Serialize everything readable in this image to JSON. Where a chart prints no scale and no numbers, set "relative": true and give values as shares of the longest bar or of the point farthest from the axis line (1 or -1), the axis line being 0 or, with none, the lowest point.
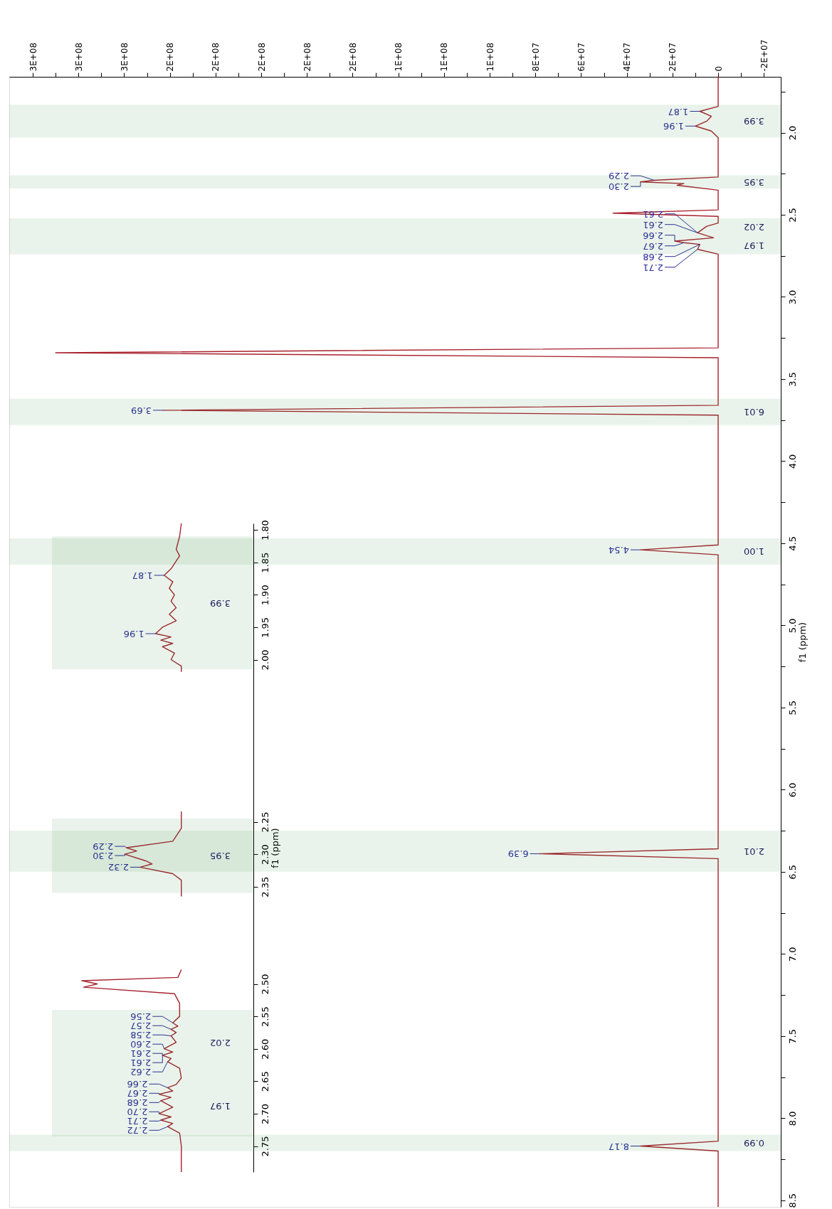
{
  "chart_data": [
    {
      "type": "line",
      "orientation": "horizontal",
      "ylabel": "f1 (ppm)",
      "ylim": [
        8.54,
        1.66
      ],
      "xlim": [
        310300000,
        -27400000
      ],
      "yticks": [
        {
          "value": 1.75,
          "label": null
        },
        {
          "value": 2.0,
          "label": "2.0"
        },
        {
          "value": 2.25,
          "label": null
        },
        {
          "value": 2.5,
          "label": "2.5"
        },
        {
          "value": 2.75,
          "label": null
        },
        {
          "value": 3.0,
          "label": "3.0"
        },
        {
          "value": 3.25,
          "label": null
        },
        {
          "value": 3.5,
          "label": "3.5"
        },
        {
          "value": 3.75,
          "label": null
        },
        {
          "value": 4.0,
          "label": "4.0"
        },
        {
          "value": 4.25,
          "label": null
        },
        {
          "value": 4.5,
          "label": "4.5"
        },
        {
          "value": 4.75,
          "label": null
        },
        {
          "value": 5.0,
          "label": "5.0"
        },
        {
          "value": 5.25,
          "label": null
        },
        {
          "value": 5.5,
          "label": "5.5"
        },
        {
          "value": 5.75,
          "label": null
        },
        {
          "value": 6.0,
          "label": "6.0"
        },
        {
          "value": 6.25,
          "label": null
        },
        {
          "value": 6.5,
          "label": "6.5"
        },
        {
          "value": 6.75,
          "label": null
        },
        {
          "value": 7.0,
          "label": "7.0"
        },
        {
          "value": 7.25,
          "label": null
        },
        {
          "value": 7.5,
          "label": "7.5"
        },
        {
          "value": 7.75,
          "label": null
        },
        {
          "value": 8.0,
          "label": "8.0"
        },
        {
          "value": 8.25,
          "label": null
        },
        {
          "value": 8.5,
          "label": "8.5"
        }
      ],
      "xticks": [
        {
          "value": -20000000,
          "label": "-2E+07"
        },
        {
          "value": -10000000,
          "label": null
        },
        0,
        {
          "value": 10000000,
          "label": null
        },
        {
          "value": 20000000,
          "label": "2E+07"
        },
        {
          "value": 30000000,
          "label": null
        },
        {
          "value": 40000000,
          "label": "4E+07"
        },
        {
          "value": 50000000,
          "label": null
        },
        {
          "value": 60000000,
          "label": "6E+07"
        },
        {
          "value": 70000000,
          "label": null
        },
        {
          "value": 80000000,
          "label": "8E+07"
        },
        {
          "value": 90000000,
          "label": null
        },
        {
          "value": 100000000,
          "label": "1E+08"
        },
        {
          "value": 110000000,
          "label": null
        },
        {
          "value": 120000000,
          "label": "1E+08"
        },
        {
          "value": 130000000,
          "label": null
        },
        {
          "value": 140000000,
          "label": "1E+08"
        },
        {
          "value": 150000000,
          "label": null
        },
        {
          "value": 160000000,
          "label": "2E+08"
        },
        {
          "value": 170000000,
          "label": null
        },
        {
          "value": 180000000,
          "label": "2E+08"
        },
        {
          "value": 190000000,
          "label": null
        },
        {
          "value": 200000000,
          "label": "2E+08"
        },
        {
          "value": 210000000,
          "label": null
        },
        {
          "value": 220000000,
          "label": "2E+08"
        },
        {
          "value": 230000000,
          "label": null
        },
        {
          "value": 240000000,
          "label": "2E+08"
        },
        {
          "value": 250000000,
          "label": null
        },
        {
          "value": 260000000,
          "label": "3E+08"
        },
        {
          "value": 270000000,
          "label": null
        },
        {
          "value": 280000000,
          "label": "3E+08"
        },
        {
          "value": 290000000,
          "label": null
        },
        {
          "value": 300000000,
          "label": "3E+08"
        }
      ],
      "series": [
        {
          "color": "#a8202c",
          "x": [
            1.66,
            1.84,
            1.87,
            1.9,
            1.93,
            1.96,
            1.99,
            2.03,
            2.27,
            2.29,
            2.3,
            2.31,
            2.32,
            2.35,
            2.47,
            2.49,
            2.51,
            2.55,
            2.57,
            2.61,
            2.64,
            2.66,
            2.67,
            2.68,
            2.71,
            2.74,
            3.31,
            3.34,
            3.37,
            3.66,
            3.69,
            3.72,
            4.51,
            4.54,
            4.57,
            6.36,
            6.39,
            6.42,
            8.14,
            8.17,
            8.2,
            8.54
          ],
          "values": [
            0,
            0,
            8000000,
            3000000,
            5000000,
            10000000,
            3000000,
            0,
            0,
            28000000,
            34000000,
            15000000,
            18000000,
            0,
            0,
            46000000,
            0,
            0,
            5000000,
            9000000,
            2000000,
            19000000,
            15000000,
            8000000,
            9000000,
            0,
            0,
            290000000,
            0,
            0,
            243000000,
            0,
            0,
            34000000,
            0,
            0,
            78000000,
            0,
            0,
            34000000,
            0,
            0
          ]
        }
      ],
      "annotations": [
        {
          "text": "1.87",
          "y": 1.87,
          "x": 8000000
        },
        {
          "text": "1.96",
          "y": 1.96,
          "x": 10000000
        },
        {
          "text": "2.29",
          "y": 2.29,
          "x": 28000000
        },
        {
          "text": "2.30",
          "y": 2.3,
          "x": 34000000
        },
        {
          "text": "2.61",
          "y": 2.61,
          "x": 9000000
        },
        {
          "text": "2.61",
          "y": 2.61,
          "x": 9000000
        },
        {
          "text": "2.66",
          "y": 2.66,
          "x": 19000000
        },
        {
          "text": "2.67",
          "y": 2.67,
          "x": 15000000
        },
        {
          "text": "2.68",
          "y": 2.68,
          "x": 8000000
        },
        {
          "text": "2.71",
          "y": 2.71,
          "x": 9000000
        },
        {
          "text": "3.69",
          "y": 3.69,
          "x": 243000000
        },
        {
          "text": "4.54",
          "y": 4.54,
          "x": 34000000
        },
        {
          "text": "6.39",
          "y": 6.39,
          "x": 78000000
        },
        {
          "text": "8.17",
          "y": 8.17,
          "x": 34000000
        }
      ],
      "bands": [
        {
          "axis": "y",
          "from": 1.83,
          "to": 2.03,
          "label": "3.99",
          "color": "#2e8b3e"
        },
        {
          "axis": "y",
          "from": 2.26,
          "to": 2.34,
          "label": "3.95",
          "color": "#2e8b3e"
        },
        {
          "axis": "y",
          "from": 2.52,
          "to": 2.63,
          "label": "2.02",
          "color": "#2e8b3e"
        },
        {
          "axis": "y",
          "from": 2.63,
          "to": 2.74,
          "label": "1.97",
          "color": "#2e8b3e"
        },
        {
          "axis": "y",
          "from": 3.62,
          "to": 3.78,
          "label": "6.01",
          "color": "#2e8b3e"
        },
        {
          "axis": "y",
          "from": 4.47,
          "to": 4.63,
          "label": "1.00",
          "color": "#2e8b3e"
        },
        {
          "axis": "y",
          "from": 6.25,
          "to": 6.5,
          "label": "2.01",
          "color": "#2e8b3e"
        },
        {
          "axis": "y",
          "from": 8.1,
          "to": 8.2,
          "label": "0.99",
          "color": "#2e8b3e"
        }
      ]
    },
    {
      "type": "line",
      "orientation": "horizontal",
      "relative": true,
      "tick_labels": "y",
      "ylabel": "f1 (ppm)",
      "ylim": [
        2.79,
        1.79
      ],
      "yticks": [
        {
          "value": 1.8,
          "label": "1.80"
        },
        {
          "value": 1.85,
          "label": "1.85"
        },
        {
          "value": 1.9,
          "label": "1.90"
        },
        {
          "value": 1.95,
          "label": "1.95"
        },
        {
          "value": 2.0,
          "label": "2.00"
        },
        {
          "value": 2.25,
          "label": "2.25"
        },
        {
          "value": 2.3,
          "label": "2.30"
        },
        {
          "value": 2.35,
          "label": "2.35"
        },
        {
          "value": 2.5,
          "label": "2.50"
        },
        {
          "value": 2.55,
          "label": "2.55"
        },
        {
          "value": 2.6,
          "label": "2.60"
        },
        {
          "value": 2.65,
          "label": "2.65"
        },
        {
          "value": 2.7,
          "label": "2.70"
        },
        {
          "value": 2.75,
          "label": "2.75"
        }
      ],
      "series": [
        {
          "color": "#a6222e",
          "x": [
            1.79,
            1.81,
            1.83,
            1.84,
            1.86,
            1.87,
            1.88,
            1.89,
            1.9,
            1.91,
            1.92,
            1.93,
            1.94,
            1.95,
            1.96,
            1.965,
            1.97,
            1.975,
            1.98,
            1.99,
            2.0,
            2.01,
            2.019
          ],
          "values": [
            -0.42,
            -0.43,
            -0.45,
            -0.43,
            -0.48,
            -0.52,
            -0.47,
            -0.49,
            -0.46,
            -0.48,
            -0.45,
            -0.49,
            -0.45,
            -0.53,
            -0.57,
            -0.48,
            -0.54,
            -0.47,
            -0.53,
            -0.46,
            -0.48,
            -0.42,
            -0.42
          ]
        },
        {
          "color": "#a6222e",
          "x": [
            2.234,
            2.26,
            2.28,
            2.29,
            2.295,
            2.3,
            2.31,
            2.315,
            2.32,
            2.33,
            2.34,
            2.365
          ],
          "values": [
            -0.42,
            -0.42,
            -0.47,
            -0.74,
            -0.68,
            -0.75,
            -0.63,
            -0.59,
            -0.66,
            -0.47,
            -0.42,
            -0.42
          ]
        },
        {
          "color": "#a6222e",
          "x": [
            2.478,
            2.49,
            2.495,
            2.5,
            2.505,
            2.515,
            2.53,
            2.55,
            2.56,
            2.565,
            2.57,
            2.575,
            2.58,
            2.59,
            2.6,
            2.605,
            2.61,
            2.615,
            2.62,
            2.63,
            2.645,
            2.655,
            2.66,
            2.665,
            2.67,
            2.675,
            2.68,
            2.69,
            2.7,
            2.705,
            2.71,
            2.715,
            2.72,
            2.73,
            2.75,
            2.79
          ],
          "values": [
            -0.42,
            -0.44,
            -1.0,
            -0.91,
            -0.99,
            -0.46,
            -0.43,
            -0.43,
            -0.47,
            -0.44,
            -0.48,
            -0.45,
            -0.48,
            -0.45,
            -0.52,
            -0.47,
            -0.53,
            -0.48,
            -0.5,
            -0.43,
            -0.42,
            -0.45,
            -0.5,
            -0.47,
            -0.55,
            -0.48,
            -0.54,
            -0.47,
            -0.55,
            -0.48,
            -0.54,
            -0.47,
            -0.5,
            -0.43,
            -0.42,
            -0.42
          ]
        }
      ],
      "annotations": [
        {
          "text": "1.87",
          "y": 1.87,
          "x": -0.52
        },
        {
          "text": "1.96",
          "y": 1.96,
          "x": -0.57
        },
        {
          "text": "2.29",
          "y": 2.29,
          "x": -0.74
        },
        {
          "text": "2.30",
          "y": 2.3,
          "x": -0.75
        },
        {
          "text": "2.32",
          "y": 2.32,
          "x": -0.66
        },
        {
          "text": "2.56",
          "y": 2.56,
          "x": -0.47
        },
        {
          "text": "2.57",
          "y": 2.57,
          "x": -0.48
        },
        {
          "text": "2.58",
          "y": 2.58,
          "x": -0.48
        },
        {
          "text": "2.60",
          "y": 2.6,
          "x": -0.52
        },
        {
          "text": "2.61",
          "y": 2.61,
          "x": -0.53
        },
        {
          "text": "2.61",
          "y": 2.61,
          "x": -0.53
        },
        {
          "text": "2.62",
          "y": 2.62,
          "x": -0.5
        },
        {
          "text": "2.66",
          "y": 2.66,
          "x": -0.5
        },
        {
          "text": "2.67",
          "y": 2.67,
          "x": -0.55
        },
        {
          "text": "2.68",
          "y": 2.68,
          "x": -0.54
        },
        {
          "text": "2.70",
          "y": 2.7,
          "x": -0.55
        },
        {
          "text": "2.71",
          "y": 2.71,
          "x": -0.54
        },
        {
          "text": "2.72",
          "y": 2.72,
          "x": -0.5
        }
      ],
      "bands": [
        {
          "axis": "y",
          "from": 1.81,
          "to": 2.015,
          "label": "3.99",
          "color": "#2e8b3e"
        },
        {
          "axis": "y",
          "from": 2.245,
          "to": 2.36,
          "label": "3.95",
          "color": "#2e8b3e"
        },
        {
          "axis": "y",
          "from": 2.54,
          "to": 2.64,
          "label": "2.02",
          "color": "#2e8b3e"
        },
        {
          "axis": "y",
          "from": 2.64,
          "to": 2.735,
          "label": "1.97",
          "color": "#2e8b3e"
        }
      ]
    }
  ]
}
